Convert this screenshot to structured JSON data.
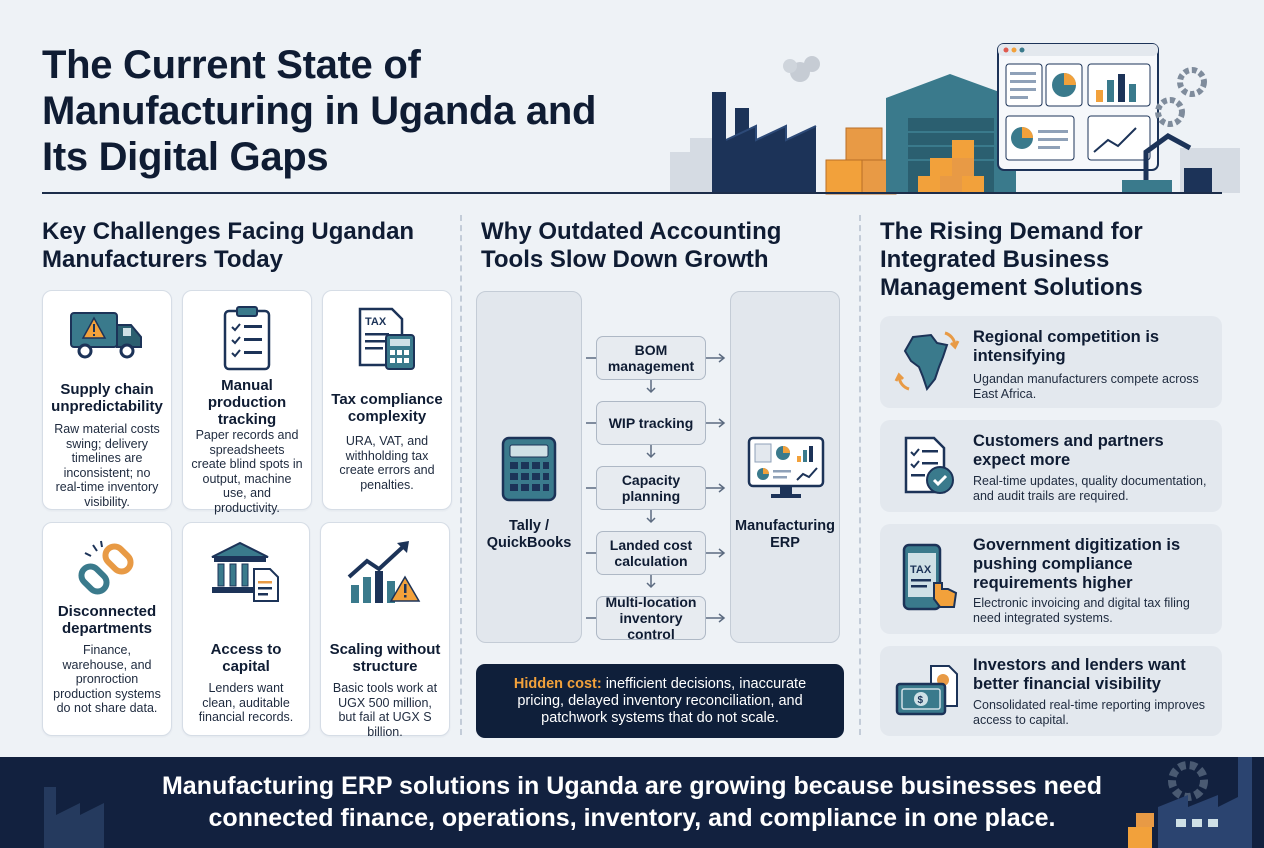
{
  "header": {
    "title": "The Current State of Manufacturing in Uganda and Its Digital Gaps"
  },
  "challenges": {
    "heading": "Key Challenges Facing Ugandan Manufacturers Today",
    "cards": [
      {
        "icon": "delivery-truck-warning-icon",
        "title": "Supply chain unpredictability",
        "text": "Raw material costs swing; delivery timelines are inconsistent; no real-time inventory visibility."
      },
      {
        "icon": "clipboard-checklist-icon",
        "title": "Manual production tracking",
        "text": "Paper records and spreadsheets create blind spots in output, machine use, and productivity."
      },
      {
        "icon": "tax-document-calculator-icon",
        "title": "Tax compliance complexity",
        "text": "URA, VAT, and withholding tax create errors and penalties."
      },
      {
        "icon": "broken-chain-icon",
        "title": "Disconnected departments",
        "text": "Finance, warehouse, and pronroction production systems do not share data."
      },
      {
        "icon": "bank-document-icon",
        "title": "Access to capital",
        "text": "Lenders want clean, auditable financial records."
      },
      {
        "icon": "growth-chart-warning-icon",
        "title": "Scaling without structure",
        "text": "Basic tools work at UGX 500 million, but fail at UGX S billion."
      }
    ]
  },
  "tools": {
    "heading": "Why Outdated Accounting Tools Slow Down Growth",
    "left_label": "Tally / QuickBooks",
    "right_label": "Manufacturing ERP",
    "steps": [
      "BOM management",
      "WIP tracking",
      "Capacity planning",
      "Landed cost calculation",
      "Multi-location inventory control"
    ],
    "hidden_cost_lead": "Hidden cost:",
    "hidden_cost_text": " inefficient decisions, inaccurate pricing, delayed inventory reconciliation, and patchwork systems that do not scale.",
    "tax_label": "TAX"
  },
  "demand": {
    "heading": "The Rising Demand for Integrated Business Management Solutions",
    "items": [
      {
        "icon": "africa-map-arrows-icon",
        "title": "Regional competition is intensifying",
        "text": "Ugandan manufacturers compete across East Africa."
      },
      {
        "icon": "document-checkmark-icon",
        "title": "Customers and partners expect more",
        "text": "Real-time updates, quality documentation, and audit trails are required."
      },
      {
        "icon": "mobile-tax-tap-icon",
        "title": "Government digitization is pushing compliance requirements higher",
        "text": "Electronic invoicing and digital tax filing need integrated systems."
      },
      {
        "icon": "cash-report-icon",
        "title": "Investors and lenders want better financial visibility",
        "text": "Consolidated real-time reporting improves access to capital."
      }
    ]
  },
  "footer": {
    "text": "Manufacturing ERP solutions in Uganda are growing because businesses need connected finance, operations, inventory, and compliance in one place."
  },
  "colors": {
    "navy": "#12213f",
    "teal": "#3a7a8c",
    "orange": "#f2a13b",
    "panel": "#e3e8ee"
  }
}
